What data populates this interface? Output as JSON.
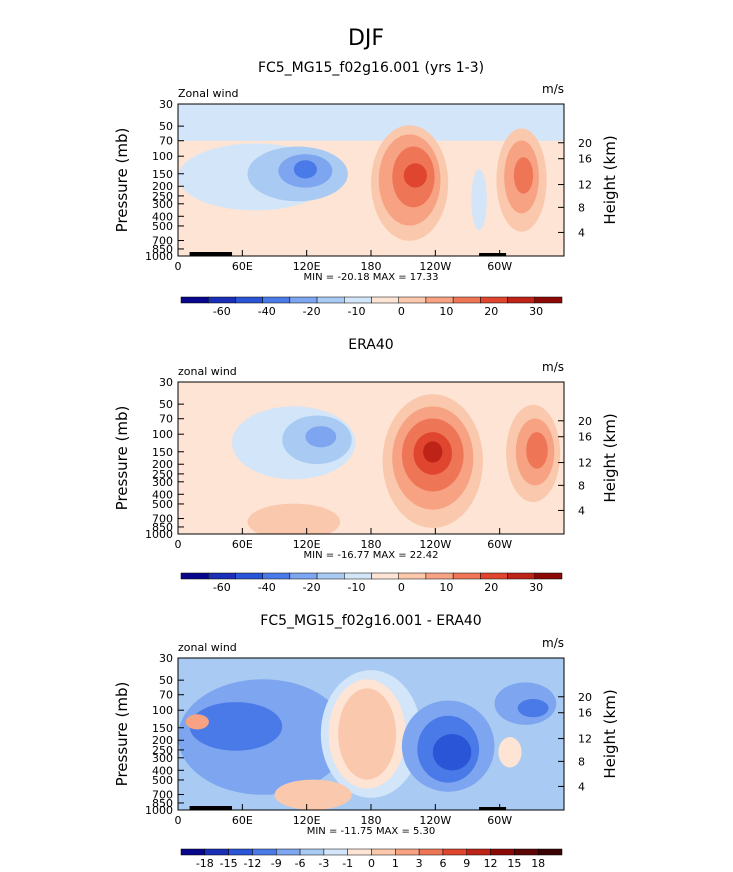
{
  "title": "DJF",
  "colors": {
    "panel1_bg": "#FDE4D4",
    "panel2_bg": "#FDE4D4",
    "panel3_bg": "#A9CBF3",
    "land": "#000000"
  },
  "chart_data": [
    {
      "type": "heatmap",
      "title": "FC5_MG15_f02g16.001 (yrs 1-3)",
      "left_label": "Zonal wind",
      "units": "m/s",
      "ylabel": "Pressure (mb)",
      "y2label": "Height (km)",
      "x_ticks": [
        "0",
        "60E",
        "120E",
        "180",
        "120W",
        "60W"
      ],
      "y_ticks": [
        "30",
        "50",
        "70",
        "100",
        "150",
        "200",
        "250",
        "300",
        "400",
        "500",
        "700",
        "850",
        "1000"
      ],
      "y2_ticks": [
        "20",
        "16",
        "12",
        "8",
        "4"
      ],
      "stats": "MIN = -20.18   MAX =  17.33",
      "colorbar": {
        "labels": [
          "-60",
          "-40",
          "-20",
          "-10",
          "0",
          "10",
          "20",
          "30"
        ],
        "colors": [
          "#08078C",
          "#1A2FB5",
          "#2A55D6",
          "#4A7AE8",
          "#7EA6F0",
          "#A9CBF3",
          "#D3E5F8",
          "#FDE4D4",
          "#FAC8AC",
          "#F6A283",
          "#EF7557",
          "#E0462F",
          "#BE2318",
          "#8B0A08"
        ]
      }
    },
    {
      "type": "heatmap",
      "title": "ERA40",
      "left_label": "zonal wind",
      "units": "m/s",
      "ylabel": "Pressure (mb)",
      "y2label": "Height (km)",
      "x_ticks": [
        "0",
        "60E",
        "120E",
        "180",
        "120W",
        "60W"
      ],
      "y_ticks": [
        "30",
        "50",
        "70",
        "100",
        "150",
        "200",
        "250",
        "300",
        "400",
        "500",
        "700",
        "850",
        "1000"
      ],
      "y2_ticks": [
        "20",
        "16",
        "12",
        "8",
        "4"
      ],
      "stats": "MIN = -16.77   MAX =  22.42",
      "colorbar": {
        "labels": [
          "-60",
          "-40",
          "-20",
          "-10",
          "0",
          "10",
          "20",
          "30"
        ],
        "colors": [
          "#08078C",
          "#1A2FB5",
          "#2A55D6",
          "#4A7AE8",
          "#7EA6F0",
          "#A9CBF3",
          "#D3E5F8",
          "#FDE4D4",
          "#FAC8AC",
          "#F6A283",
          "#EF7557",
          "#E0462F",
          "#BE2318",
          "#8B0A08"
        ]
      }
    },
    {
      "type": "heatmap",
      "title": "FC5_MG15_f02g16.001 - ERA40",
      "left_label": "zonal wind",
      "units": "m/s",
      "ylabel": "Pressure (mb)",
      "y2label": "Height (km)",
      "x_ticks": [
        "0",
        "60E",
        "120E",
        "180",
        "120W",
        "60W"
      ],
      "y_ticks": [
        "30",
        "50",
        "70",
        "100",
        "150",
        "200",
        "250",
        "300",
        "400",
        "500",
        "700",
        "850",
        "1000"
      ],
      "y2_ticks": [
        "20",
        "16",
        "12",
        "8",
        "4"
      ],
      "stats": "MIN = -11.75   MAX =   5.30",
      "colorbar": {
        "labels": [
          "-18",
          "-15",
          "-12",
          "-9",
          "-6",
          "-3",
          "-1",
          "0",
          "1",
          "3",
          "6",
          "9",
          "12",
          "15",
          "18"
        ],
        "colors": [
          "#08078C",
          "#1A2FB5",
          "#2A55D6",
          "#4A7AE8",
          "#7EA6F0",
          "#A9CBF3",
          "#D3E5F8",
          "#FDE4D4",
          "#FAC8AC",
          "#F6A283",
          "#EF7557",
          "#E0462F",
          "#BE2318",
          "#8B0A08",
          "#5C0505",
          "#3A0202"
        ]
      }
    }
  ]
}
